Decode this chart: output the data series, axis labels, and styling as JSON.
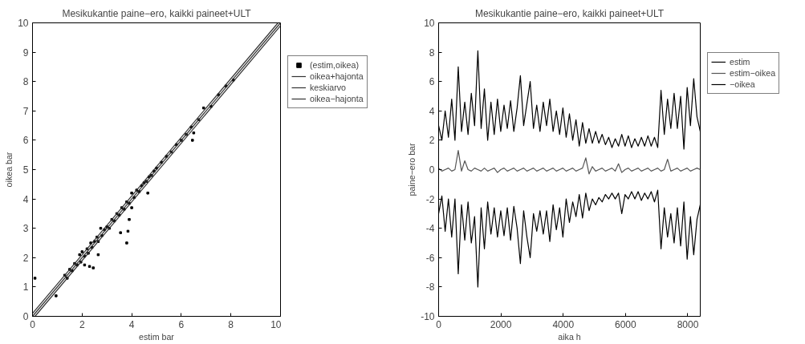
{
  "chart_data": [
    {
      "type": "scatter",
      "title": "Mesikukantie paine−ero, kaikki paineet+ULT",
      "xlabel": "estim bar",
      "ylabel": "oikea bar",
      "xlim": [
        0,
        10
      ],
      "ylim": [
        0,
        10
      ],
      "xticks": [
        0,
        2,
        4,
        6,
        8,
        10
      ],
      "yticks": [
        0,
        1,
        2,
        3,
        4,
        5,
        6,
        7,
        8,
        9,
        10
      ],
      "grid": false,
      "legend": "right",
      "series": [
        {
          "name": "(estim,oikea)",
          "type": "scatter",
          "marker": "square",
          "color": "#000000",
          "x": [
            1.3,
            1.4,
            1.5,
            1.6,
            1.7,
            1.8,
            1.9,
            1.95,
            2.0,
            2.1,
            2.2,
            2.25,
            2.35,
            2.4,
            2.5,
            2.6,
            2.65,
            2.75,
            2.8,
            2.9,
            3.0,
            3.1,
            3.2,
            3.3,
            3.4,
            3.5,
            3.6,
            3.7,
            3.8,
            3.9,
            4.0,
            4.1,
            4.2,
            4.3,
            4.4,
            4.5,
            4.6,
            4.7,
            4.8,
            4.9,
            5.0,
            5.2,
            5.4,
            5.6,
            5.8,
            6.0,
            6.2,
            6.4,
            6.7,
            6.9,
            7.2,
            7.5,
            7.8,
            8.1,
            0.1,
            0.95,
            2.3,
            2.45,
            2.1,
            3.55,
            3.85,
            3.9,
            3.8,
            4.65,
            4.0,
            2.65,
            6.45,
            6.5
          ],
          "values": [
            1.4,
            1.3,
            1.6,
            1.55,
            1.8,
            1.75,
            2.1,
            1.85,
            2.2,
            2.05,
            2.3,
            2.15,
            2.5,
            2.35,
            2.55,
            2.7,
            2.55,
            3.0,
            2.75,
            2.95,
            3.05,
            3.0,
            3.3,
            3.25,
            3.5,
            3.45,
            3.7,
            3.65,
            3.9,
            3.85,
            4.2,
            4.05,
            4.3,
            4.25,
            4.45,
            4.55,
            4.6,
            4.75,
            4.8,
            4.95,
            5.05,
            5.25,
            5.45,
            5.6,
            5.85,
            6.0,
            6.2,
            6.45,
            6.7,
            7.1,
            7.15,
            7.55,
            7.85,
            8.05,
            1.3,
            0.7,
            1.7,
            1.65,
            1.75,
            2.85,
            2.9,
            3.3,
            2.5,
            4.2,
            3.7,
            2.1,
            6.0,
            6.25
          ]
        },
        {
          "name": "oikea+hajonta",
          "type": "line",
          "color": "#333333",
          "x": [
            0,
            9.9
          ],
          "values": [
            0.1,
            10
          ]
        },
        {
          "name": "keskiarvo",
          "type": "line",
          "color": "#333333",
          "x": [
            0,
            10
          ],
          "values": [
            0,
            10
          ]
        },
        {
          "name": "oikea−hajonta",
          "type": "line",
          "color": "#333333",
          "x": [
            0.1,
            10
          ],
          "values": [
            0,
            9.9
          ]
        }
      ]
    },
    {
      "type": "line",
      "title": "Mesikukantie paine−ero, kaikki paineet+ULT",
      "xlabel": "aika h",
      "ylabel": "paine−ero bar",
      "xlim": [
        0,
        8400
      ],
      "ylim": [
        -10,
        10
      ],
      "xticks": [
        0,
        2000,
        4000,
        6000,
        8000
      ],
      "yticks": [
        -10,
        -8,
        -6,
        -4,
        -2,
        0,
        2,
        4,
        6,
        8,
        10
      ],
      "grid": false,
      "legend": "right",
      "x": [
        0,
        105,
        210,
        315,
        420,
        525,
        630,
        735,
        840,
        945,
        1050,
        1155,
        1260,
        1365,
        1470,
        1575,
        1680,
        1785,
        1890,
        1995,
        2100,
        2205,
        2310,
        2415,
        2520,
        2625,
        2730,
        2835,
        2940,
        3045,
        3150,
        3255,
        3360,
        3465,
        3570,
        3675,
        3780,
        3885,
        3990,
        4095,
        4200,
        4305,
        4410,
        4515,
        4620,
        4725,
        4830,
        4935,
        5040,
        5145,
        5250,
        5355,
        5460,
        5565,
        5670,
        5775,
        5880,
        5985,
        6090,
        6195,
        6300,
        6405,
        6510,
        6615,
        6720,
        6825,
        6930,
        7035,
        7140,
        7245,
        7350,
        7455,
        7560,
        7665,
        7770,
        7875,
        7980,
        8085,
        8190,
        8295,
        8400
      ],
      "series": [
        {
          "name": "estim",
          "color": "#000000",
          "values": [
            3.0,
            2.0,
            4.0,
            2.2,
            4.8,
            2.0,
            7.0,
            2.6,
            4.6,
            2.4,
            5.2,
            3.0,
            8.1,
            2.8,
            5.5,
            2.0,
            4.6,
            2.4,
            4.8,
            2.6,
            4.4,
            2.8,
            4.7,
            2.6,
            4.2,
            6.4,
            3.0,
            4.5,
            6.0,
            2.8,
            4.4,
            2.6,
            4.6,
            3.0,
            4.8,
            2.6,
            4.0,
            2.4,
            4.2,
            2.2,
            3.8,
            2.0,
            3.4,
            1.6,
            3.2,
            1.8,
            2.8,
            1.8,
            2.6,
            1.8,
            2.4,
            1.7,
            2.2,
            1.5,
            2.1,
            1.6,
            2.4,
            1.6,
            2.3,
            1.5,
            2.1,
            1.6,
            2.2,
            1.6,
            2.3,
            1.6,
            2.2,
            1.5,
            5.4,
            2.4,
            4.8,
            2.8,
            5.2,
            2.8,
            5.0,
            1.4,
            5.6,
            3.0,
            6.2,
            3.6,
            2.6
          ]
        },
        {
          "name": "estim−oikea",
          "color": "#555555",
          "values": [
            0.1,
            -0.1,
            0.0,
            0.1,
            -0.1,
            0.0,
            1.3,
            -0.1,
            0.6,
            0.0,
            -0.1,
            0.1,
            0.0,
            -0.1,
            0.1,
            -0.1,
            0.0,
            0.1,
            -0.2,
            0.0,
            0.1,
            -0.1,
            0.0,
            0.1,
            -0.1,
            0.0,
            0.1,
            -0.1,
            0.0,
            0.1,
            -0.1,
            0.0,
            0.1,
            -0.1,
            0.0,
            0.1,
            -0.1,
            0.0,
            0.1,
            -0.1,
            0.0,
            0.1,
            -0.1,
            0.0,
            0.1,
            0.8,
            -0.3,
            0.2,
            -0.1,
            0.0,
            0.1,
            -0.1,
            0.0,
            0.1,
            -0.1,
            0.4,
            -0.2,
            0.0,
            0.1,
            -0.1,
            0.0,
            0.1,
            -0.1,
            0.0,
            0.1,
            -0.1,
            0.0,
            0.1,
            -0.1,
            0.0,
            0.7,
            -0.1,
            0.0,
            0.1,
            -0.1,
            0.0,
            0.1,
            -0.1,
            0.0,
            0.1,
            0.0
          ]
        },
        {
          "name": "−oikea",
          "color": "#000000",
          "values": [
            -3.0,
            -1.8,
            -4.2,
            -2.0,
            -4.6,
            -2.0,
            -7.1,
            -2.4,
            -4.8,
            -2.2,
            -5.0,
            -3.2,
            -8.0,
            -2.6,
            -5.4,
            -2.2,
            -4.4,
            -2.6,
            -4.6,
            -2.8,
            -4.5,
            -2.6,
            -4.8,
            -2.5,
            -4.0,
            -6.4,
            -2.8,
            -4.6,
            -6.0,
            -3.0,
            -4.2,
            -2.8,
            -4.4,
            -2.8,
            -4.9,
            -2.4,
            -4.1,
            -2.6,
            -4.6,
            -2.0,
            -3.6,
            -2.2,
            -3.2,
            -1.7,
            -3.3,
            -1.6,
            -2.8,
            -2.0,
            -2.4,
            -1.9,
            -2.2,
            -1.7,
            -2.0,
            -1.6,
            -2.0,
            -1.6,
            -3.0,
            -1.7,
            -2.0,
            -1.5,
            -2.0,
            -1.5,
            -2.1,
            -1.6,
            -2.0,
            -1.5,
            -2.2,
            -1.4,
            -5.4,
            -2.6,
            -4.6,
            -3.0,
            -5.0,
            -2.6,
            -5.2,
            -2.2,
            -6.1,
            -3.2,
            -5.8,
            -3.4,
            -2.4
          ]
        }
      ]
    }
  ]
}
